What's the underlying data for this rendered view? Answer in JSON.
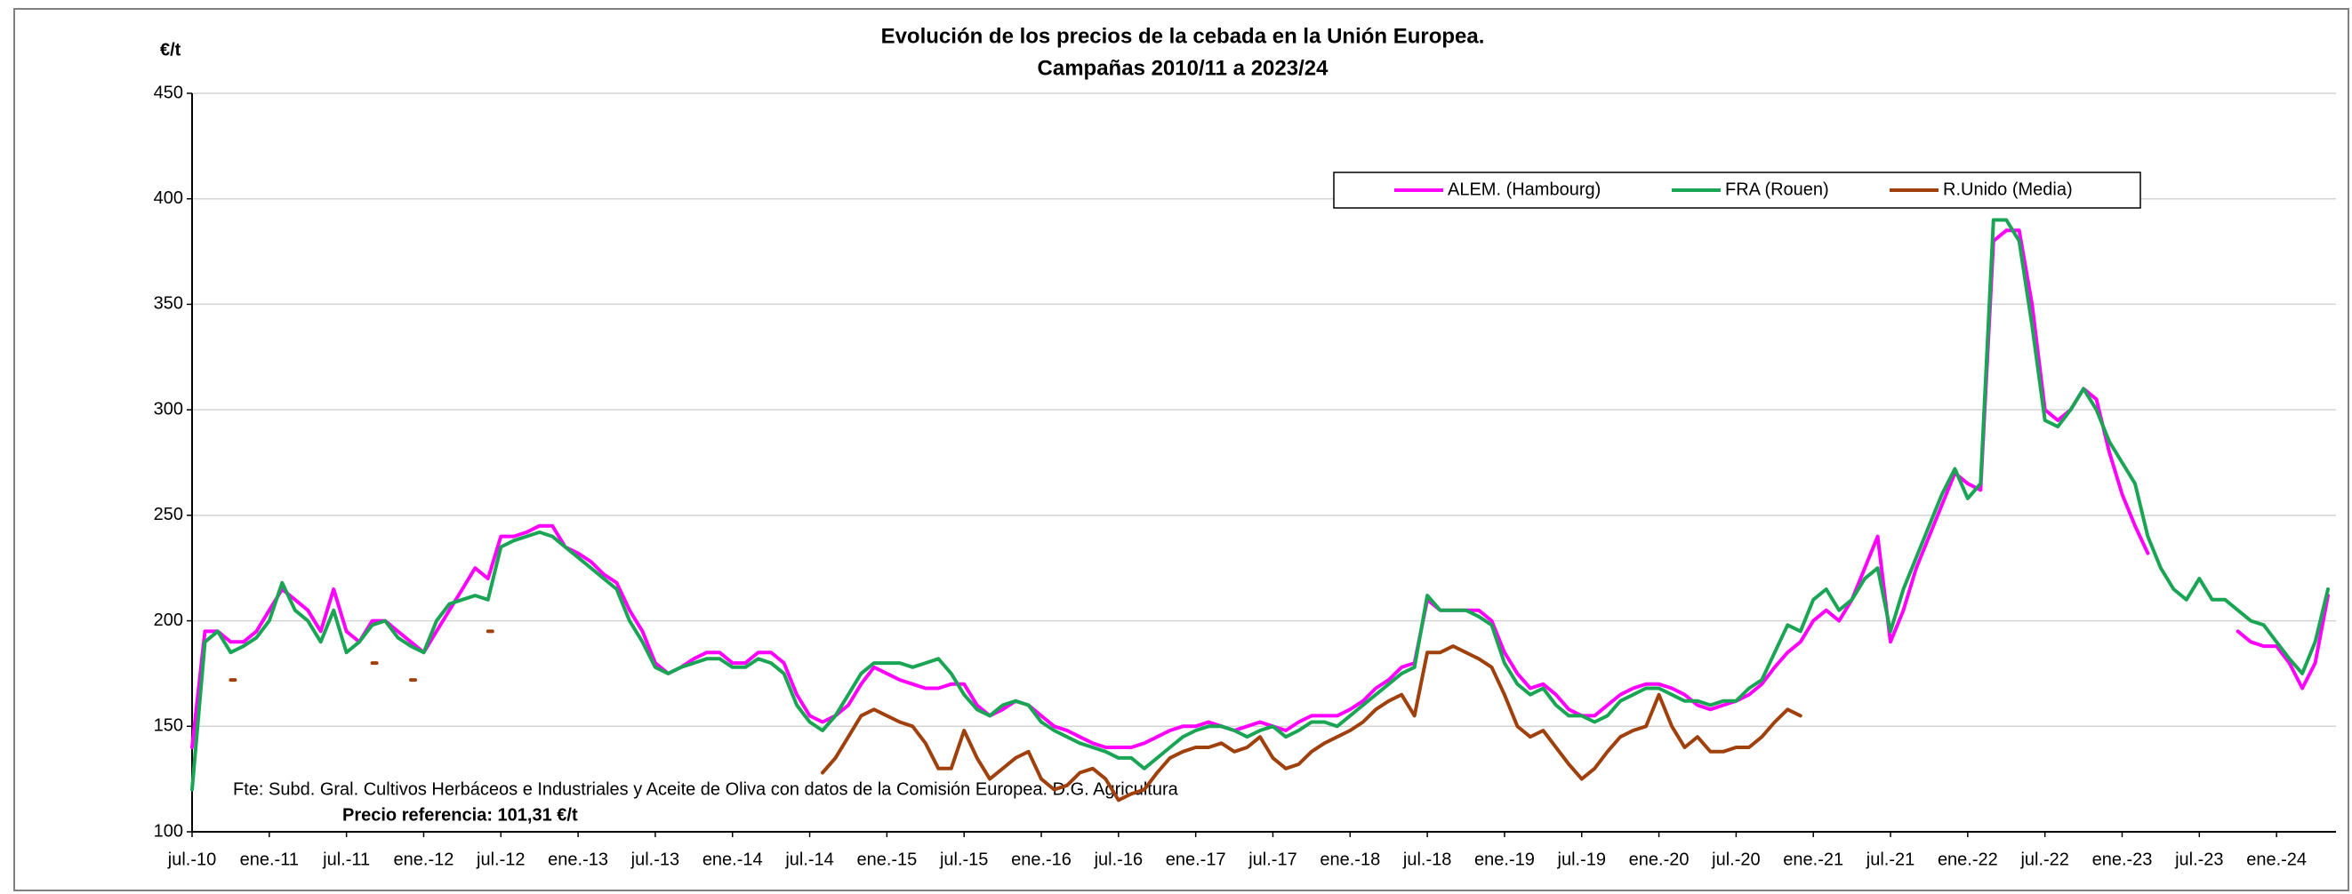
{
  "chart_data": {
    "type": "line",
    "title": "Evolución de los precios de la cebada en la Unión Europea.",
    "subtitle": "Campañas 2010/11 a 2023/24",
    "y_label": "€/t",
    "source": "Fte: Subd. Gral. Cultivos Herbáceos e Industriales y Aceite de Oliva con datos de la Comisión Europea. D.G. Agricultura",
    "note": "Precio referencia: 101,31 €/t",
    "ylim": [
      100,
      450
    ],
    "yticks": [
      100,
      150,
      200,
      250,
      300,
      350,
      400,
      450
    ],
    "grid": true,
    "categories": [
      "jul.-10",
      null,
      null,
      null,
      null,
      null,
      "ene.-11",
      null,
      null,
      null,
      null,
      null,
      "jul.-11",
      null,
      null,
      null,
      null,
      null,
      "ene.-12",
      null,
      null,
      null,
      null,
      null,
      "jul.-12",
      null,
      null,
      null,
      null,
      null,
      "ene.-13",
      null,
      null,
      null,
      null,
      null,
      "jul.-13",
      null,
      null,
      null,
      null,
      null,
      "ene.-14",
      null,
      null,
      null,
      null,
      null,
      "jul.-14",
      null,
      null,
      null,
      null,
      null,
      "ene.-15",
      null,
      null,
      null,
      null,
      null,
      "jul.-15",
      null,
      null,
      null,
      null,
      null,
      "ene.-16",
      null,
      null,
      null,
      null,
      null,
      "jul.-16",
      null,
      null,
      null,
      null,
      null,
      "ene.-17",
      null,
      null,
      null,
      null,
      null,
      "jul.-17",
      null,
      null,
      null,
      null,
      null,
      "ene.-18",
      null,
      null,
      null,
      null,
      null,
      "jul.-18",
      null,
      null,
      null,
      null,
      null,
      "ene.-19",
      null,
      null,
      null,
      null,
      null,
      "jul.-19",
      null,
      null,
      null,
      null,
      null,
      "ene.-20",
      null,
      null,
      null,
      null,
      null,
      "jul.-20",
      null,
      null,
      null,
      null,
      null,
      "ene.-21",
      null,
      null,
      null,
      null,
      null,
      "jul.-21",
      null,
      null,
      null,
      null,
      null,
      "ene.-22",
      null,
      null,
      null,
      null,
      null,
      "jul.-22",
      null,
      null,
      null,
      null,
      null,
      "ene.-23",
      null,
      null,
      null,
      null,
      null,
      "jul.-23",
      null,
      null,
      null,
      null,
      null,
      "ene.-24",
      null,
      null,
      null,
      null
    ],
    "series": [
      {
        "name": "ALEM. (Hambourg)",
        "color": "#ff00ff",
        "values": [
          140,
          195,
          195,
          190,
          190,
          195,
          205,
          215,
          210,
          205,
          195,
          215,
          195,
          190,
          200,
          200,
          195,
          190,
          185,
          195,
          205,
          215,
          225,
          220,
          240,
          240,
          242,
          245,
          245,
          235,
          232,
          228,
          222,
          218,
          205,
          195,
          180,
          175,
          178,
          182,
          185,
          185,
          180,
          180,
          185,
          185,
          180,
          165,
          155,
          152,
          155,
          160,
          170,
          178,
          175,
          172,
          170,
          168,
          168,
          170,
          170,
          160,
          155,
          158,
          162,
          160,
          155,
          150,
          148,
          145,
          142,
          140,
          140,
          140,
          142,
          145,
          148,
          150,
          150,
          152,
          150,
          148,
          150,
          152,
          150,
          148,
          152,
          155,
          155,
          155,
          158,
          162,
          168,
          172,
          178,
          180,
          210,
          205,
          205,
          205,
          205,
          200,
          185,
          175,
          168,
          170,
          165,
          158,
          155,
          155,
          160,
          165,
          168,
          170,
          170,
          168,
          165,
          160,
          158,
          160,
          162,
          165,
          170,
          178,
          185,
          190,
          200,
          205,
          200,
          210,
          225,
          240,
          190,
          205,
          225,
          240,
          255,
          270,
          265,
          262,
          380,
          385,
          385,
          350,
          300,
          295,
          300,
          310,
          305,
          280,
          260,
          245,
          232,
          null,
          null,
          null,
          null,
          null,
          null,
          195,
          190,
          188,
          188,
          180,
          168,
          180,
          212
        ]
      },
      {
        "name": "FRA (Rouen)",
        "color": "#1aa555",
        "values": [
          120,
          190,
          195,
          185,
          188,
          192,
          200,
          218,
          205,
          200,
          190,
          205,
          185,
          190,
          198,
          200,
          192,
          188,
          185,
          200,
          208,
          210,
          212,
          210,
          235,
          238,
          240,
          242,
          240,
          235,
          230,
          225,
          220,
          215,
          200,
          190,
          178,
          175,
          178,
          180,
          182,
          182,
          178,
          178,
          182,
          180,
          175,
          160,
          152,
          148,
          155,
          165,
          175,
          180,
          180,
          180,
          178,
          180,
          182,
          175,
          165,
          158,
          155,
          160,
          162,
          160,
          152,
          148,
          145,
          142,
          140,
          138,
          135,
          135,
          130,
          135,
          140,
          145,
          148,
          150,
          150,
          148,
          145,
          148,
          150,
          145,
          148,
          152,
          152,
          150,
          155,
          160,
          165,
          170,
          175,
          178,
          212,
          205,
          205,
          205,
          202,
          198,
          180,
          170,
          165,
          168,
          160,
          155,
          155,
          152,
          155,
          162,
          165,
          168,
          168,
          165,
          162,
          162,
          160,
          162,
          162,
          168,
          172,
          185,
          198,
          195,
          210,
          215,
          205,
          210,
          220,
          225,
          195,
          215,
          230,
          245,
          260,
          272,
          258,
          265,
          390,
          390,
          380,
          340,
          295,
          292,
          300,
          310,
          300,
          285,
          275,
          265,
          240,
          225,
          215,
          210,
          220,
          210,
          210,
          205,
          200,
          198,
          190,
          182,
          175,
          190,
          215
        ]
      },
      {
        "name": "R.Unido (Media)",
        "color": "#a0400c",
        "values": [
          null,
          null,
          null,
          172,
          null,
          null,
          null,
          null,
          null,
          null,
          null,
          null,
          null,
          null,
          180,
          null,
          null,
          172,
          null,
          null,
          null,
          null,
          null,
          195,
          null,
          null,
          null,
          null,
          null,
          null,
          null,
          null,
          null,
          null,
          null,
          null,
          null,
          null,
          null,
          null,
          null,
          null,
          null,
          null,
          null,
          null,
          null,
          null,
          null,
          128,
          135,
          145,
          155,
          158,
          155,
          152,
          150,
          142,
          130,
          130,
          148,
          135,
          125,
          130,
          135,
          138,
          125,
          120,
          122,
          128,
          130,
          125,
          115,
          118,
          120,
          128,
          135,
          138,
          140,
          140,
          142,
          138,
          140,
          145,
          135,
          130,
          132,
          138,
          142,
          145,
          148,
          152,
          158,
          162,
          165,
          155,
          185,
          185,
          188,
          185,
          182,
          178,
          165,
          150,
          145,
          148,
          140,
          132,
          125,
          130,
          138,
          145,
          148,
          150,
          165,
          150,
          140,
          145,
          138,
          138,
          140,
          140,
          145,
          152,
          158,
          155,
          null,
          null,
          null,
          null,
          null,
          null,
          null,
          null,
          null,
          null,
          null,
          null,
          null,
          null,
          null,
          null,
          null,
          null,
          null,
          null,
          null,
          null,
          null,
          null,
          null,
          null,
          null,
          null,
          null,
          null,
          null,
          null,
          null,
          null,
          null,
          null,
          null,
          null,
          null,
          null,
          null
        ]
      }
    ]
  }
}
